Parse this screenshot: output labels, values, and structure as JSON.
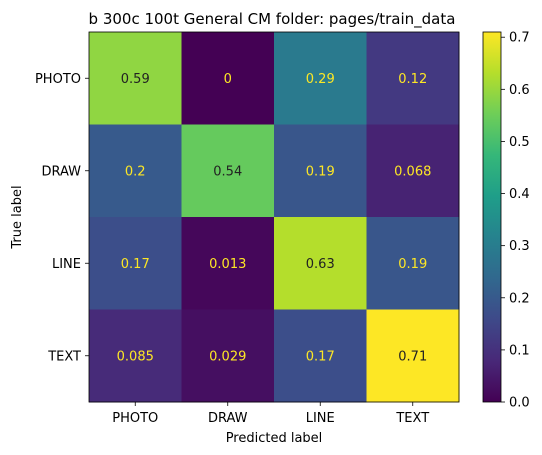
{
  "chart_data": {
    "type": "heatmap",
    "title": "b 300c 100t  General CM folder: pages/train_data",
    "xlabel": "Predicted label",
    "ylabel": "True label",
    "x_categories": [
      "PHOTO",
      "DRAW",
      "LINE",
      "TEXT"
    ],
    "y_categories": [
      "PHOTO",
      "DRAW",
      "LINE",
      "TEXT"
    ],
    "values": [
      [
        0.59,
        0,
        0.29,
        0.12
      ],
      [
        0.2,
        0.54,
        0.19,
        0.068
      ],
      [
        0.17,
        0.013,
        0.63,
        0.19
      ],
      [
        0.085,
        0.029,
        0.17,
        0.71
      ]
    ],
    "value_labels": [
      [
        "0.59",
        "0",
        "0.29",
        "0.12"
      ],
      [
        "0.2",
        "0.54",
        "0.19",
        "0.068"
      ],
      [
        "0.17",
        "0.013",
        "0.63",
        "0.19"
      ],
      [
        "0.085",
        "0.029",
        "0.17",
        "0.71"
      ]
    ],
    "colormap": "viridis",
    "colorbar": {
      "range": [
        0,
        0.71
      ],
      "ticks": [
        "0.0",
        "0.1",
        "0.2",
        "0.3",
        "0.4",
        "0.5",
        "0.6",
        "0.7"
      ]
    },
    "text_colors": {
      "dark_cell": "#fde725",
      "light_cell": "#222222"
    }
  }
}
